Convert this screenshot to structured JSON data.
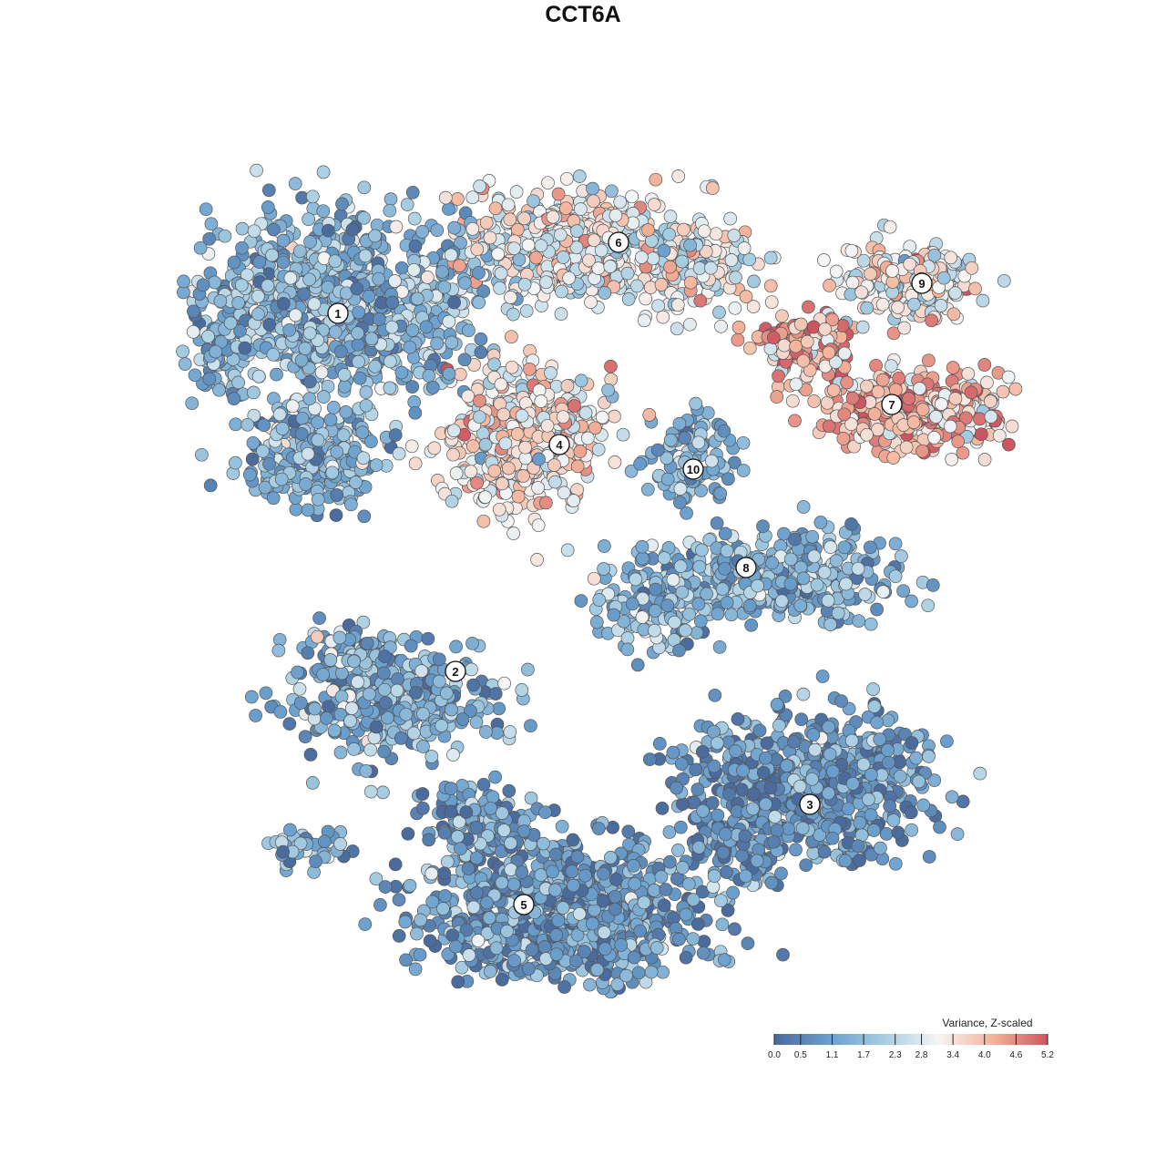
{
  "chart_data": {
    "type": "scatter",
    "title": "CCT6A",
    "xlabel": "",
    "ylabel": "",
    "grid": false,
    "legend": {
      "title": "Variance, Z-scaled",
      "placement": "bottom-right",
      "min": 0.0,
      "max": 5.2,
      "ticks": [
        "0.0",
        "0.5",
        "1.1",
        "1.7",
        "2.3",
        "2.8",
        "3.4",
        "4.0",
        "4.6",
        "5.2"
      ],
      "colors": [
        "#4a6b9c",
        "#6a9fcd",
        "#a6cde2",
        "#f5f5f5",
        "#f4b39a",
        "#cc5561"
      ]
    },
    "clusters": [
      {
        "label": "1",
        "mean": 1.6
      },
      {
        "label": "2",
        "mean": 1.4
      },
      {
        "label": "3",
        "mean": 0.9
      },
      {
        "label": "4",
        "mean": 3.3
      },
      {
        "label": "5",
        "mean": 1.0
      },
      {
        "label": "6",
        "mean": 3.0
      },
      {
        "label": "7",
        "mean": 4.1
      },
      {
        "label": "8",
        "mean": 1.5
      },
      {
        "label": "9",
        "mean": 3.2
      },
      {
        "label": "10",
        "mean": 1.4
      }
    ]
  }
}
